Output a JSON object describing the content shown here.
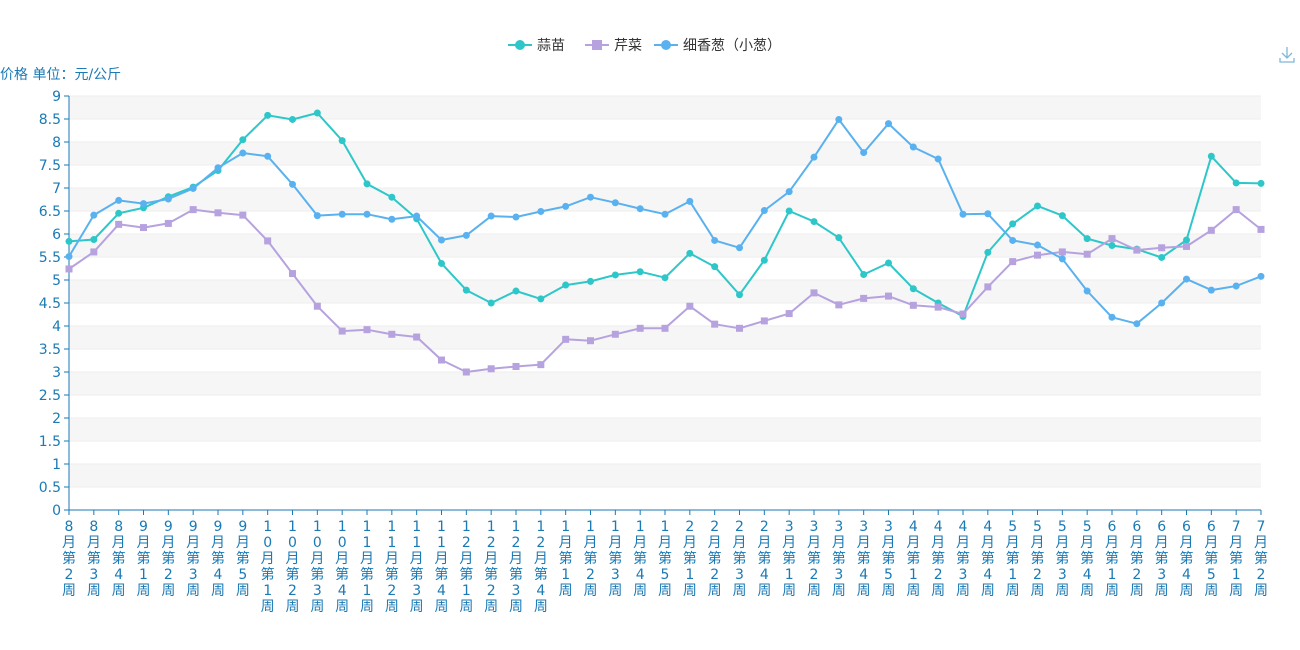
{
  "chart_data": {
    "type": "line",
    "ylabel": "价格 单位：元/公斤",
    "ylim": [
      0,
      9
    ],
    "yticks": [
      0,
      0.5,
      1,
      1.5,
      2,
      2.5,
      3,
      3.5,
      4,
      4.5,
      5,
      5.5,
      6,
      6.5,
      7,
      7.5,
      8,
      8.5,
      9
    ],
    "ytick_labels": [
      "0",
      "0.5",
      "1",
      "1.5",
      "2",
      "2.5",
      "3",
      "3.5",
      "4",
      "4.5",
      "5",
      "5.5",
      "6",
      "6.5",
      "7",
      "7.5",
      "8",
      "8.5",
      "9"
    ],
    "grid": "horizontal bands",
    "legend_position": "top-center",
    "categories": [
      "8月第2周",
      "8月第3周",
      "8月第4周",
      "9月第1周",
      "9月第2周",
      "9月第3周",
      "9月第4周",
      "9月第5周",
      "10月第1周",
      "10月第2周",
      "10月第3周",
      "10月第4周",
      "11月第1周",
      "11月第2周",
      "11月第3周",
      "11月第4周",
      "12月第1周",
      "12月第2周",
      "12月第3周",
      "12月第4周",
      "1月第1周",
      "1月第2周",
      "1月第3周",
      "1月第4周",
      "1月第5周",
      "2月第1周",
      "2月第2周",
      "2月第3周",
      "2月第4周",
      "3月第1周",
      "3月第2周",
      "3月第3周",
      "3月第4周",
      "3月第5周",
      "4月第1周",
      "4月第2周",
      "4月第3周",
      "4月第4周",
      "5月第1周",
      "5月第2周",
      "5月第3周",
      "5月第4周",
      "6月第1周",
      "6月第2周",
      "6月第3周",
      "6月第4周",
      "6月第5周",
      "7月第1周",
      "7月第2周"
    ],
    "series": [
      {
        "name": "蒜苗",
        "color": "#2ec7c9",
        "marker": "circle",
        "values": [
          5.84,
          5.88,
          6.45,
          6.57,
          6.81,
          7.02,
          7.38,
          8.05,
          8.58,
          8.49,
          8.63,
          8.03,
          7.09,
          6.8,
          6.33,
          5.36,
          4.78,
          4.5,
          4.76,
          4.59,
          4.89,
          4.97,
          5.11,
          5.18,
          5.05,
          5.58,
          5.29,
          4.68,
          5.43,
          6.5,
          6.27,
          5.92,
          5.12,
          5.37,
          4.81,
          4.5,
          4.21,
          5.6,
          6.22,
          6.61,
          6.4,
          5.9,
          5.75,
          5.67,
          5.49,
          5.87,
          7.69,
          7.11,
          7.1
        ]
      },
      {
        "name": "芹菜",
        "color": "#b6a2de",
        "marker": "square",
        "values": [
          5.24,
          5.61,
          6.21,
          6.14,
          6.23,
          6.53,
          6.46,
          6.41,
          5.85,
          5.14,
          4.43,
          3.89,
          3.92,
          3.82,
          3.76,
          3.26,
          3.0,
          3.07,
          3.12,
          3.16,
          3.71,
          3.68,
          3.82,
          3.95,
          3.95,
          4.43,
          4.04,
          3.95,
          4.11,
          4.27,
          4.72,
          4.46,
          4.6,
          4.65,
          4.45,
          4.41,
          4.26,
          4.85,
          5.4,
          5.54,
          5.61,
          5.56,
          5.9,
          5.65,
          5.7,
          5.73,
          6.08,
          6.53,
          6.1
        ]
      },
      {
        "name": "细香葱（小葱）",
        "color": "#5ab1ef",
        "marker": "circle",
        "values": [
          5.51,
          6.41,
          6.73,
          6.66,
          6.76,
          6.99,
          7.44,
          7.76,
          7.69,
          7.08,
          6.4,
          6.43,
          6.43,
          6.32,
          6.39,
          5.87,
          5.97,
          6.39,
          6.37,
          6.49,
          6.6,
          6.8,
          6.68,
          6.55,
          6.43,
          6.71,
          5.86,
          5.7,
          6.51,
          6.92,
          7.67,
          8.49,
          7.77,
          8.4,
          7.89,
          7.63,
          6.43,
          6.44,
          5.86,
          5.76,
          5.46,
          4.76,
          4.19,
          4.05,
          4.5,
          5.02,
          4.78,
          4.87,
          5.08
        ]
      }
    ]
  },
  "toolbar": {
    "download_icon": "download-icon"
  }
}
